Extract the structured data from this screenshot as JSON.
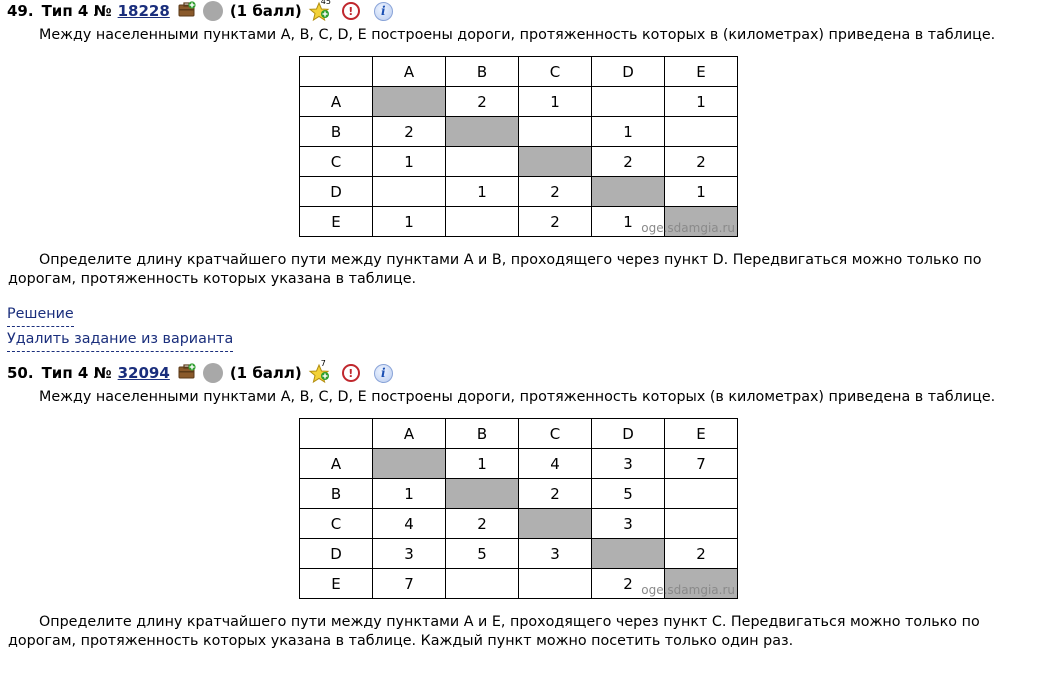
{
  "problems": [
    {
      "number": "49.",
      "type": "Тип 4 №",
      "id": "18228",
      "points": "(1 балл)",
      "star_count": "45",
      "condition": "Между населенными пунктами A, B, C, D, E построены дороги, протяженность которых в (километрах) приведена в таблице.",
      "headers": [
        "",
        "A",
        "B",
        "C",
        "D",
        "E"
      ],
      "rows": [
        [
          "A",
          "",
          "2",
          "1",
          "",
          "1"
        ],
        [
          "B",
          "2",
          "",
          "",
          "1",
          ""
        ],
        [
          "C",
          "1",
          "",
          "",
          "2",
          "2"
        ],
        [
          "D",
          "",
          "1",
          "2",
          "",
          "1"
        ],
        [
          "E",
          "1",
          "",
          "2",
          "1",
          ""
        ]
      ],
      "watermark": "oge.sdamgia.ru",
      "task": "Определите длину кратчайшего пути между пунктами A и B, проходящего через пункт D. Передвигаться можно только по дорогам, протяженность которых указана в таблице.",
      "links": [
        "Решение",
        "Удалить задание из варианта"
      ]
    },
    {
      "number": "50.",
      "type": "Тип 4 №",
      "id": "32094",
      "points": "(1 балл)",
      "star_count": "7",
      "condition": "Между населенными пунктами A, B, C, D, E построены дороги, протяженность которых (в километрах) приведена в таблице.",
      "headers": [
        "",
        "A",
        "B",
        "C",
        "D",
        "E"
      ],
      "rows": [
        [
          "A",
          "",
          "1",
          "4",
          "3",
          "7"
        ],
        [
          "B",
          "1",
          "",
          "2",
          "5",
          ""
        ],
        [
          "C",
          "4",
          "2",
          "",
          "3",
          ""
        ],
        [
          "D",
          "3",
          "5",
          "3",
          "",
          "2"
        ],
        [
          "E",
          "7",
          "",
          "",
          "2",
          ""
        ]
      ],
      "watermark": "oge.sdamgia.ru",
      "task": "Определите длину кратчайшего пути между пунктами A и E, проходящего через пункт C. Передвигаться можно только по дорогам, протяженность которых указана в таблице. Каждый пункт можно посетить только один раз."
    }
  ],
  "icons": {
    "case": "briefcase-plus-icon",
    "circle": "status-circle-icon",
    "star": "star-plus-icon",
    "warn": "report-error-icon",
    "info": "info-icon"
  },
  "colors": {
    "link": "#1a2e7c",
    "diagonal": "#b0b0b0",
    "warn": "#c0272d",
    "circle": "#a8a8a8"
  }
}
